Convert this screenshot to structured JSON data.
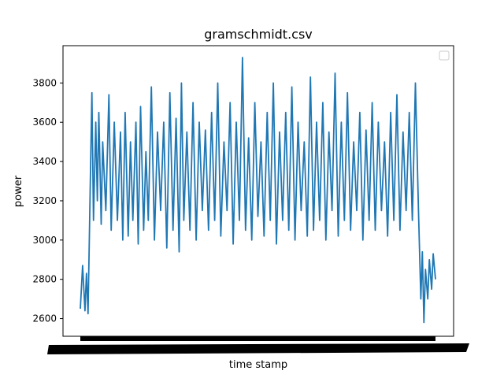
{
  "chart_data": {
    "type": "line",
    "title": "gramschmidt.csv",
    "xlabel": "time stamp",
    "ylabel": "power",
    "ylim": [
      2510,
      3990
    ],
    "yticks": [
      2600,
      2800,
      3000,
      3200,
      3400,
      3600,
      3800
    ],
    "xtick_labels_overlapping": true,
    "legend": {
      "placement": "top-right",
      "entries": []
    },
    "grid": false,
    "series": [
      {
        "color": "#1f77b4",
        "x": [
          0,
          3,
          6,
          8,
          10,
          13,
          15,
          17,
          20,
          22,
          24,
          27,
          29,
          33,
          37,
          40,
          44,
          48,
          52,
          55,
          58,
          62,
          65,
          68,
          72,
          75,
          78,
          82,
          85,
          88,
          92,
          96,
          100,
          104,
          108,
          112,
          116,
          120,
          124,
          128,
          131,
          134,
          138,
          142,
          146,
          150,
          154,
          158,
          162,
          166,
          170,
          174,
          178,
          182,
          186,
          190,
          194,
          198,
          202,
          206,
          210,
          214,
          218,
          222,
          226,
          230,
          234,
          238,
          242,
          246,
          250,
          254,
          258,
          262,
          266,
          270,
          274,
          278,
          282,
          286,
          290,
          294,
          298,
          302,
          306,
          310,
          314,
          318,
          322,
          326,
          330,
          334,
          338,
          342,
          346,
          350,
          354,
          358,
          362,
          366,
          370,
          374,
          378,
          382,
          386,
          390,
          394,
          398,
          402,
          406,
          410,
          414,
          418,
          422,
          426,
          430,
          434,
          438,
          441,
          443,
          445,
          447,
          450,
          452,
          455,
          457,
          460
        ],
        "values": [
          2650,
          2870,
          2640,
          2830,
          2625,
          3300,
          3750,
          3100,
          3600,
          3200,
          3650,
          3080,
          3500,
          3150,
          3740,
          3050,
          3600,
          3100,
          3550,
          3000,
          3650,
          3020,
          3500,
          3100,
          3600,
          2980,
          3680,
          3050,
          3450,
          3100,
          3780,
          3000,
          3550,
          3150,
          3600,
          2960,
          3750,
          3050,
          3620,
          2940,
          3800,
          3100,
          3550,
          3050,
          3700,
          3000,
          3600,
          3150,
          3560,
          3050,
          3650,
          3100,
          3800,
          3020,
          3500,
          3150,
          3700,
          2980,
          3600,
          3100,
          3930,
          3050,
          3520,
          3000,
          3700,
          3120,
          3500,
          3020,
          3650,
          3100,
          3800,
          2980,
          3550,
          3100,
          3650,
          3050,
          3780,
          3000,
          3600,
          3150,
          3500,
          3020,
          3830,
          3050,
          3600,
          3100,
          3700,
          3000,
          3550,
          3150,
          3850,
          3020,
          3600,
          3100,
          3750,
          3050,
          3500,
          3150,
          3650,
          3000,
          3560,
          3100,
          3700,
          3050,
          3600,
          3150,
          3500,
          3020,
          3650,
          3100,
          3740,
          3050,
          3550,
          3150,
          3650,
          3100,
          3800,
          3150,
          2700,
          2940,
          2580,
          2850,
          2700,
          2900,
          2750,
          2930,
          2800
        ]
      }
    ]
  }
}
